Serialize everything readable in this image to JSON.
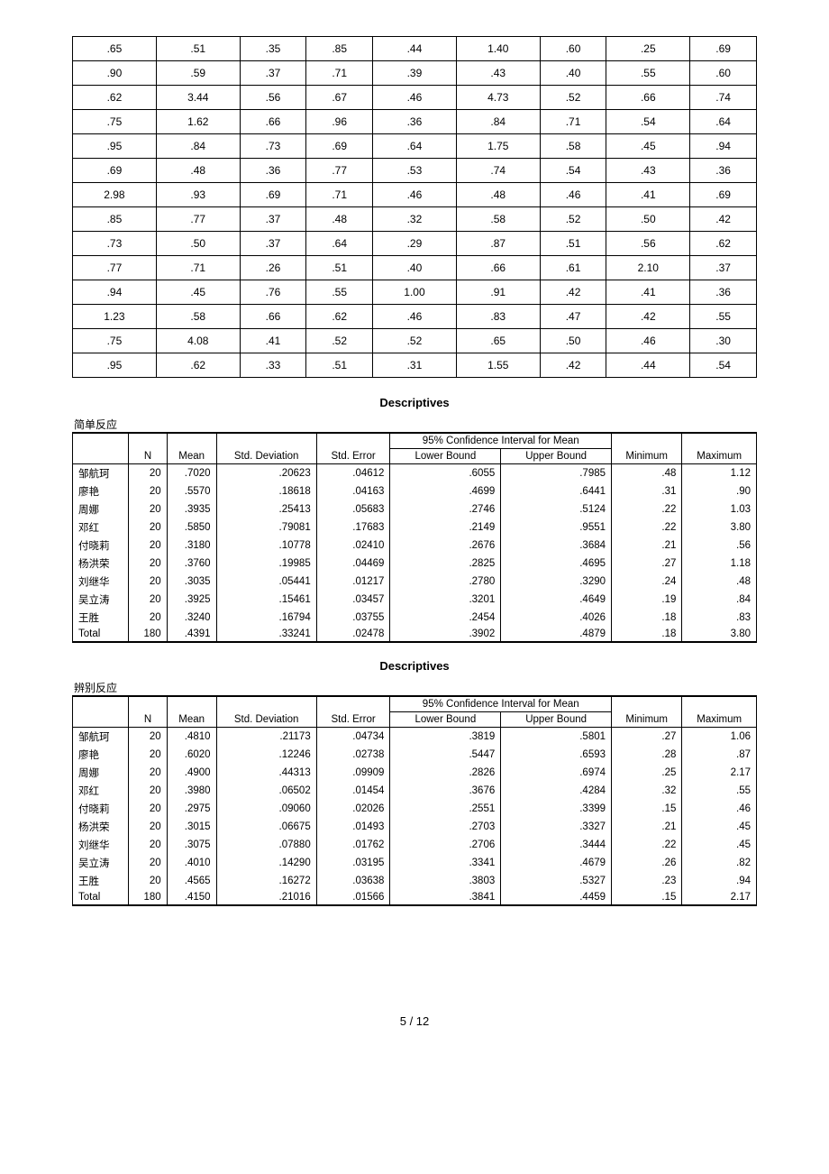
{
  "raw_table": {
    "rows": [
      [
        ".65",
        ".51",
        ".35",
        ".85",
        ".44",
        "1.40",
        ".60",
        ".25",
        ".69"
      ],
      [
        ".90",
        ".59",
        ".37",
        ".71",
        ".39",
        ".43",
        ".40",
        ".55",
        ".60"
      ],
      [
        ".62",
        "3.44",
        ".56",
        ".67",
        ".46",
        "4.73",
        ".52",
        ".66",
        ".74"
      ],
      [
        ".75",
        "1.62",
        ".66",
        ".96",
        ".36",
        ".84",
        ".71",
        ".54",
        ".64"
      ],
      [
        ".95",
        ".84",
        ".73",
        ".69",
        ".64",
        "1.75",
        ".58",
        ".45",
        ".94"
      ],
      [
        ".69",
        ".48",
        ".36",
        ".77",
        ".53",
        ".74",
        ".54",
        ".43",
        ".36"
      ],
      [
        "2.98",
        ".93",
        ".69",
        ".71",
        ".46",
        ".48",
        ".46",
        ".41",
        ".69"
      ],
      [
        ".85",
        ".77",
        ".37",
        ".48",
        ".32",
        ".58",
        ".52",
        ".50",
        ".42"
      ],
      [
        ".73",
        ".50",
        ".37",
        ".64",
        ".29",
        ".87",
        ".51",
        ".56",
        ".62"
      ],
      [
        ".77",
        ".71",
        ".26",
        ".51",
        ".40",
        ".66",
        ".61",
        "2.10",
        ".37"
      ],
      [
        ".94",
        ".45",
        ".76",
        ".55",
        "1.00",
        ".91",
        ".42",
        ".41",
        ".36"
      ],
      [
        "1.23",
        ".58",
        ".66",
        ".62",
        ".46",
        ".83",
        ".47",
        ".42",
        ".55"
      ],
      [
        ".75",
        "4.08",
        ".41",
        ".52",
        ".52",
        ".65",
        ".50",
        ".46",
        ".30"
      ],
      [
        ".95",
        ".62",
        ".33",
        ".51",
        ".31",
        "1.55",
        ".42",
        ".44",
        ".54"
      ]
    ]
  },
  "descriptives": [
    {
      "title": "Descriptives",
      "caption": "简单反应",
      "ci_label": "95% Confidence Interval for Mean",
      "headers": {
        "n": "N",
        "mean": "Mean",
        "sd": "Std. Deviation",
        "se": "Std. Error",
        "lb": "Lower Bound",
        "ub": "Upper Bound",
        "min": "Minimum",
        "max": "Maximum"
      },
      "rows": [
        {
          "name": "邹航珂",
          "n": "20",
          "mean": ".7020",
          "sd": ".20623",
          "se": ".04612",
          "lb": ".6055",
          "ub": ".7985",
          "min": ".48",
          "max": "1.12"
        },
        {
          "name": "廖艳",
          "n": "20",
          "mean": ".5570",
          "sd": ".18618",
          "se": ".04163",
          "lb": ".4699",
          "ub": ".6441",
          "min": ".31",
          "max": ".90"
        },
        {
          "name": "周娜",
          "n": "20",
          "mean": ".3935",
          "sd": ".25413",
          "se": ".05683",
          "lb": ".2746",
          "ub": ".5124",
          "min": ".22",
          "max": "1.03"
        },
        {
          "name": "邓红",
          "n": "20",
          "mean": ".5850",
          "sd": ".79081",
          "se": ".17683",
          "lb": ".2149",
          "ub": ".9551",
          "min": ".22",
          "max": "3.80"
        },
        {
          "name": "付晓莉",
          "n": "20",
          "mean": ".3180",
          "sd": ".10778",
          "se": ".02410",
          "lb": ".2676",
          "ub": ".3684",
          "min": ".21",
          "max": ".56"
        },
        {
          "name": "杨洪荣",
          "n": "20",
          "mean": ".3760",
          "sd": ".19985",
          "se": ".04469",
          "lb": ".2825",
          "ub": ".4695",
          "min": ".27",
          "max": "1.18"
        },
        {
          "name": "刘继华",
          "n": "20",
          "mean": ".3035",
          "sd": ".05441",
          "se": ".01217",
          "lb": ".2780",
          "ub": ".3290",
          "min": ".24",
          "max": ".48"
        },
        {
          "name": "吴立涛",
          "n": "20",
          "mean": ".3925",
          "sd": ".15461",
          "se": ".03457",
          "lb": ".3201",
          "ub": ".4649",
          "min": ".19",
          "max": ".84"
        },
        {
          "name": "王胜",
          "n": "20",
          "mean": ".3240",
          "sd": ".16794",
          "se": ".03755",
          "lb": ".2454",
          "ub": ".4026",
          "min": ".18",
          "max": ".83"
        },
        {
          "name": "Total",
          "n": "180",
          "mean": ".4391",
          "sd": ".33241",
          "se": ".02478",
          "lb": ".3902",
          "ub": ".4879",
          "min": ".18",
          "max": "3.80"
        }
      ]
    },
    {
      "title": "Descriptives",
      "caption": "辨别反应",
      "ci_label": "95% Confidence Interval for Mean",
      "headers": {
        "n": "N",
        "mean": "Mean",
        "sd": "Std. Deviation",
        "se": "Std. Error",
        "lb": "Lower Bound",
        "ub": "Upper Bound",
        "min": "Minimum",
        "max": "Maximum"
      },
      "rows": [
        {
          "name": "邹航珂",
          "n": "20",
          "mean": ".4810",
          "sd": ".21173",
          "se": ".04734",
          "lb": ".3819",
          "ub": ".5801",
          "min": ".27",
          "max": "1.06"
        },
        {
          "name": "廖艳",
          "n": "20",
          "mean": ".6020",
          "sd": ".12246",
          "se": ".02738",
          "lb": ".5447",
          "ub": ".6593",
          "min": ".28",
          "max": ".87"
        },
        {
          "name": "周娜",
          "n": "20",
          "mean": ".4900",
          "sd": ".44313",
          "se": ".09909",
          "lb": ".2826",
          "ub": ".6974",
          "min": ".25",
          "max": "2.17"
        },
        {
          "name": "邓红",
          "n": "20",
          "mean": ".3980",
          "sd": ".06502",
          "se": ".01454",
          "lb": ".3676",
          "ub": ".4284",
          "min": ".32",
          "max": ".55"
        },
        {
          "name": "付晓莉",
          "n": "20",
          "mean": ".2975",
          "sd": ".09060",
          "se": ".02026",
          "lb": ".2551",
          "ub": ".3399",
          "min": ".15",
          "max": ".46"
        },
        {
          "name": "杨洪荣",
          "n": "20",
          "mean": ".3015",
          "sd": ".06675",
          "se": ".01493",
          "lb": ".2703",
          "ub": ".3327",
          "min": ".21",
          "max": ".45"
        },
        {
          "name": "刘继华",
          "n": "20",
          "mean": ".3075",
          "sd": ".07880",
          "se": ".01762",
          "lb": ".2706",
          "ub": ".3444",
          "min": ".22",
          "max": ".45"
        },
        {
          "name": "吴立涛",
          "n": "20",
          "mean": ".4010",
          "sd": ".14290",
          "se": ".03195",
          "lb": ".3341",
          "ub": ".4679",
          "min": ".26",
          "max": ".82"
        },
        {
          "name": "王胜",
          "n": "20",
          "mean": ".4565",
          "sd": ".16272",
          "se": ".03638",
          "lb": ".3803",
          "ub": ".5327",
          "min": ".23",
          "max": ".94"
        },
        {
          "name": "Total",
          "n": "180",
          "mean": ".4150",
          "sd": ".21016",
          "se": ".01566",
          "lb": ".3841",
          "ub": ".4459",
          "min": ".15",
          "max": "2.17"
        }
      ]
    }
  ],
  "page": {
    "label": "5  /  12"
  }
}
